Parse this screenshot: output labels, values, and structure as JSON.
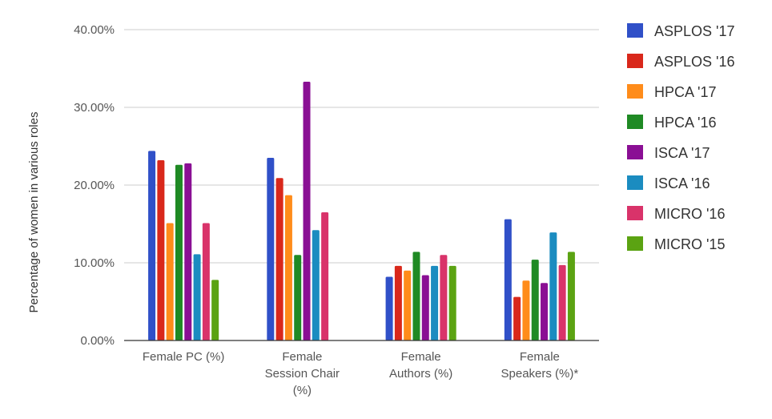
{
  "chart_data": {
    "type": "bar",
    "title": "",
    "xlabel": "",
    "ylabel": "Percentage of women in various roles",
    "ylim": [
      0,
      40
    ],
    "yticks": [
      "0.00%",
      "10.00%",
      "20.00%",
      "30.00%",
      "40.00%"
    ],
    "grid": true,
    "legend_position": "right",
    "categories": [
      [
        "Female PC (%)"
      ],
      [
        "Female",
        "Session Chair",
        "(%)"
      ],
      [
        "Female",
        "Authors (%)"
      ],
      [
        "Female",
        "Speakers (%)*"
      ]
    ],
    "series": [
      {
        "name": "ASPLOS '17",
        "color": "#3050c8",
        "values": [
          24.4,
          23.5,
          8.2,
          15.6
        ]
      },
      {
        "name": "ASPLOS '16",
        "color": "#d9281b",
        "values": [
          23.2,
          20.9,
          9.6,
          5.6
        ]
      },
      {
        "name": "HPCA '17",
        "color": "#ff8c1a",
        "values": [
          15.1,
          18.7,
          9.0,
          7.7
        ]
      },
      {
        "name": "HPCA '16",
        "color": "#1f8a24",
        "values": [
          22.6,
          11.0,
          11.4,
          10.4
        ]
      },
      {
        "name": "ISCA '17",
        "color": "#8a0f94",
        "values": [
          22.8,
          33.3,
          8.4,
          7.4
        ]
      },
      {
        "name": "ISCA '16",
        "color": "#1b8cc0",
        "values": [
          11.1,
          14.2,
          9.6,
          13.9
        ]
      },
      {
        "name": "MICRO '16",
        "color": "#d9336a",
        "values": [
          15.1,
          16.5,
          11.0,
          9.7
        ]
      },
      {
        "name": "MICRO '15",
        "color": "#5ba312",
        "values": [
          7.8,
          null,
          9.6,
          11.4
        ]
      }
    ]
  }
}
